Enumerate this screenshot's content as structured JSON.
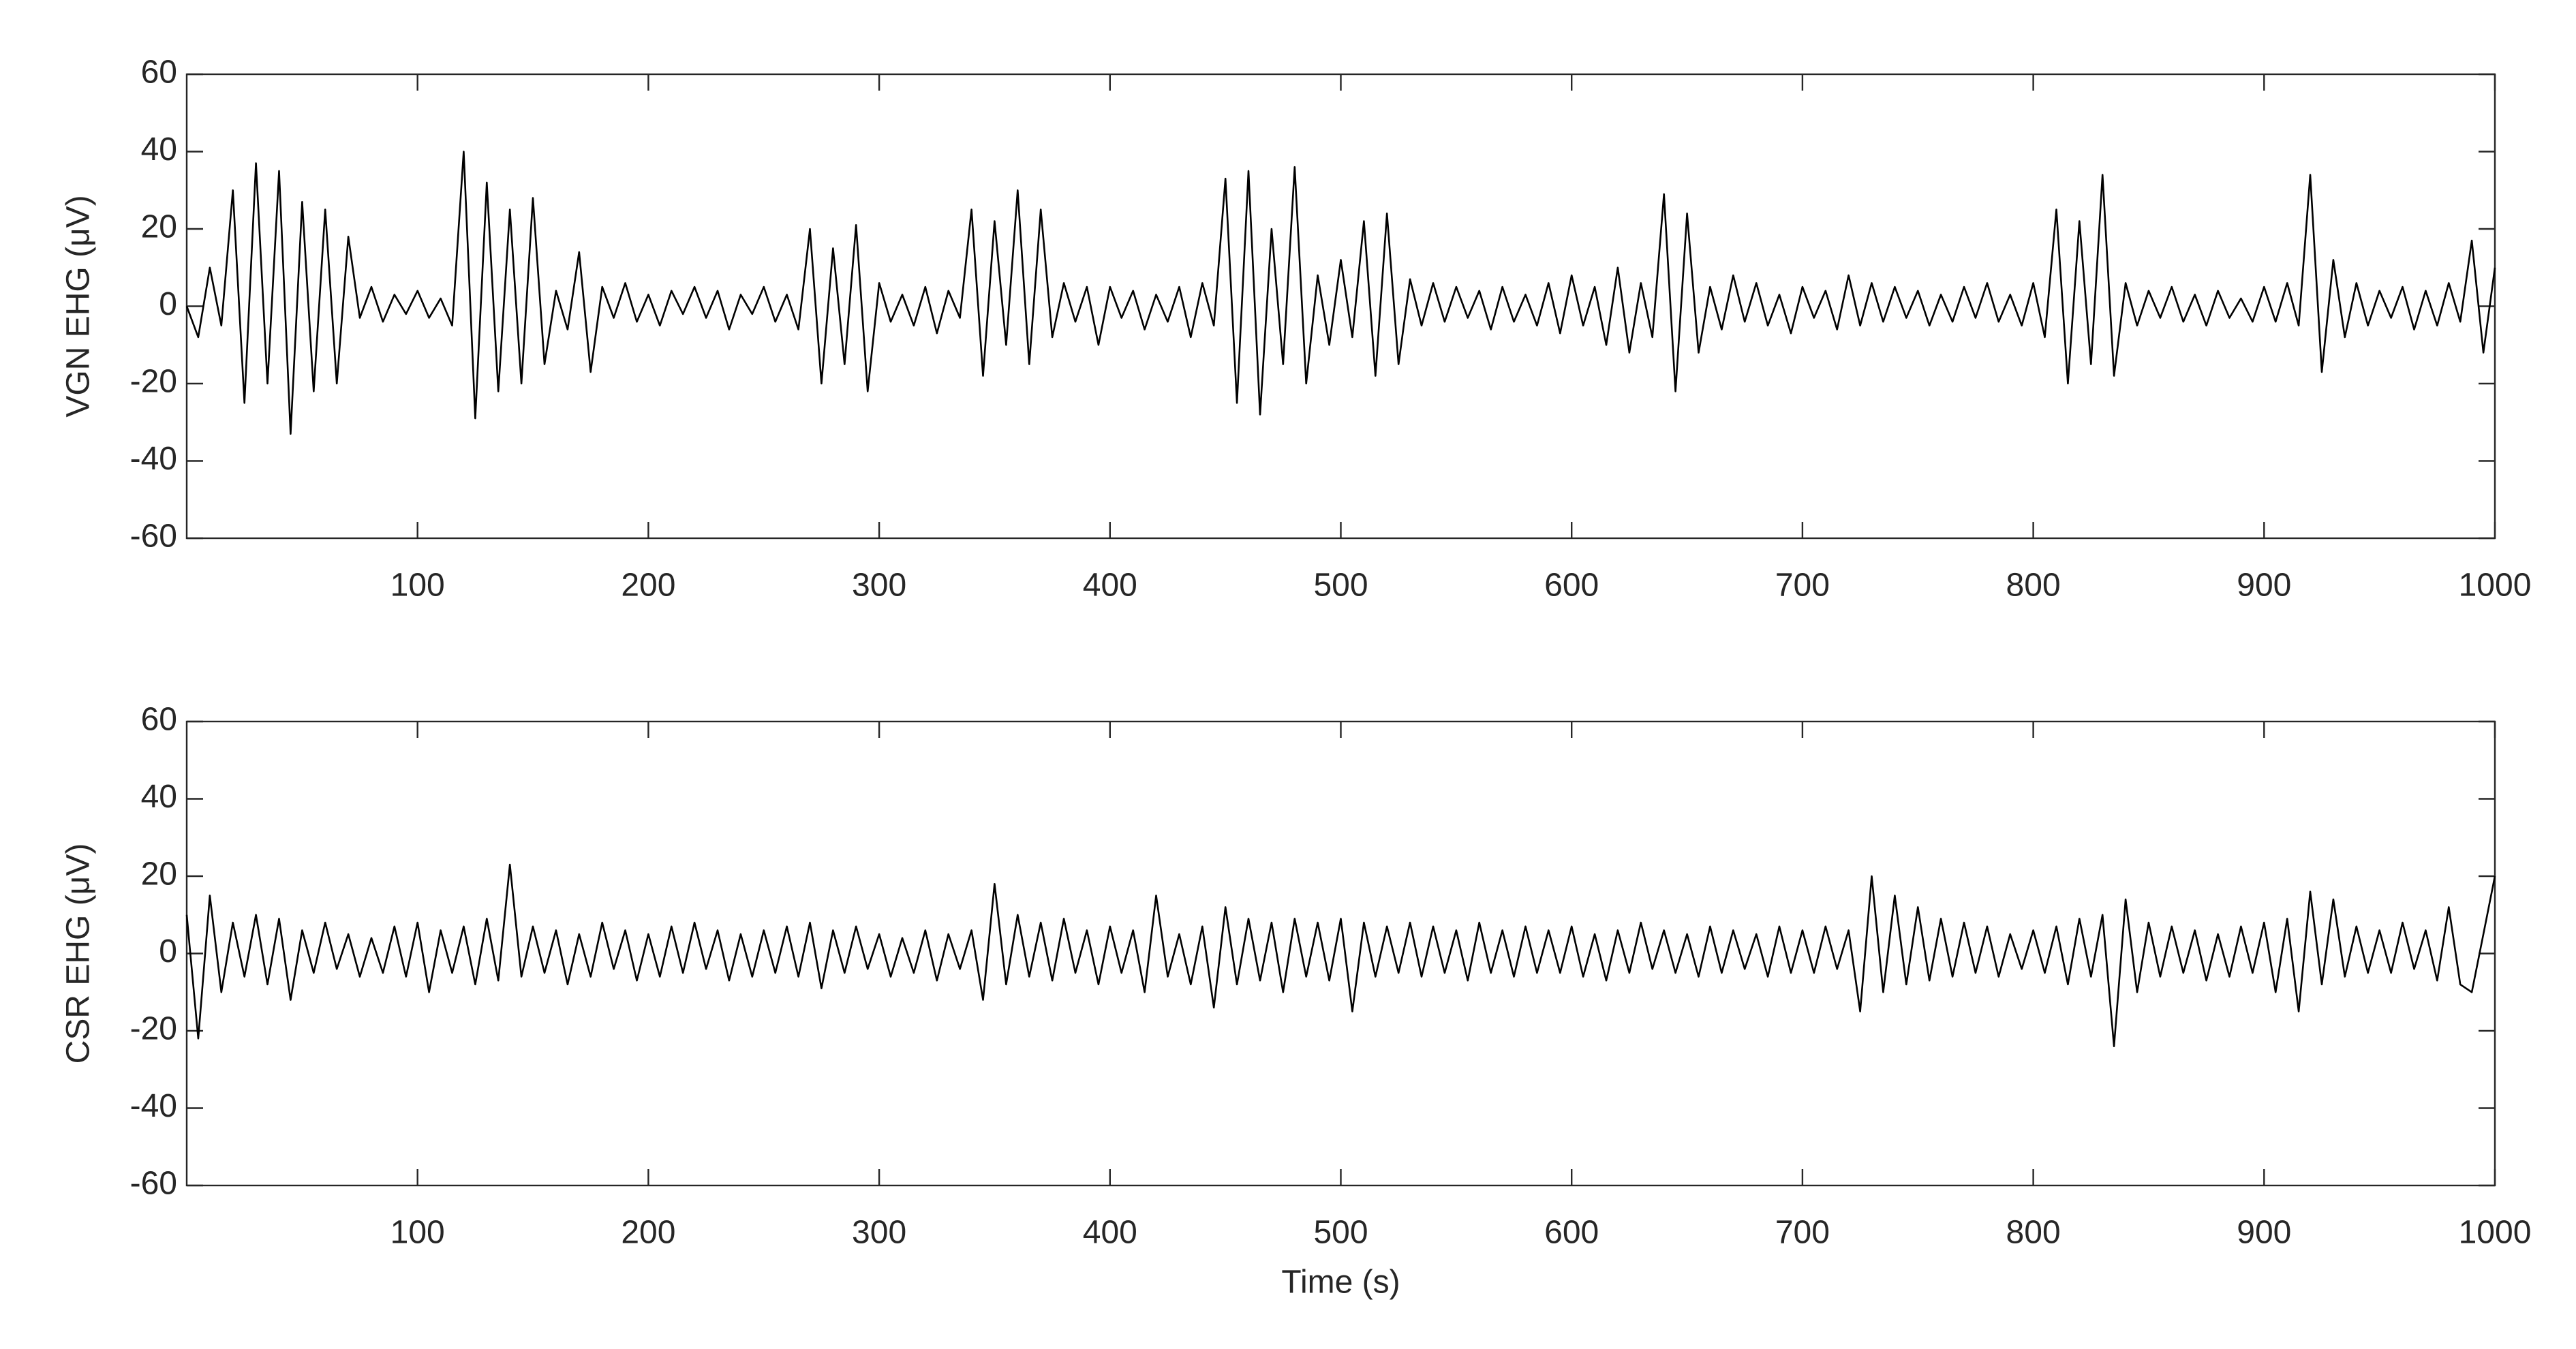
{
  "chart_data": [
    {
      "type": "line",
      "ylabel": "VGN EHG (μV)",
      "color": "#000000",
      "xlim": [
        0,
        1000
      ],
      "xticks": [
        100,
        200,
        300,
        400,
        500,
        600,
        700,
        800,
        900,
        1000
      ],
      "ylim": [
        -60,
        60
      ],
      "yticks": [
        -60,
        -40,
        -20,
        0,
        20,
        40,
        60
      ],
      "x": [
        0,
        5,
        10,
        15,
        20,
        25,
        30,
        35,
        40,
        45,
        50,
        55,
        60,
        65,
        70,
        75,
        80,
        85,
        90,
        95,
        100,
        105,
        110,
        115,
        120,
        125,
        130,
        135,
        140,
        145,
        150,
        155,
        160,
        165,
        170,
        175,
        180,
        185,
        190,
        195,
        200,
        205,
        210,
        215,
        220,
        225,
        230,
        235,
        240,
        245,
        250,
        255,
        260,
        265,
        270,
        275,
        280,
        285,
        290,
        295,
        300,
        305,
        310,
        315,
        320,
        325,
        330,
        335,
        340,
        345,
        350,
        355,
        360,
        365,
        370,
        375,
        380,
        385,
        390,
        395,
        400,
        405,
        410,
        415,
        420,
        425,
        430,
        435,
        440,
        445,
        450,
        455,
        460,
        465,
        470,
        475,
        480,
        485,
        490,
        495,
        500,
        505,
        510,
        515,
        520,
        525,
        530,
        535,
        540,
        545,
        550,
        555,
        560,
        565,
        570,
        575,
        580,
        585,
        590,
        595,
        600,
        605,
        610,
        615,
        620,
        625,
        630,
        635,
        640,
        645,
        650,
        655,
        660,
        665,
        670,
        675,
        680,
        685,
        690,
        695,
        700,
        705,
        710,
        715,
        720,
        725,
        730,
        735,
        740,
        745,
        750,
        755,
        760,
        765,
        770,
        775,
        780,
        785,
        790,
        795,
        800,
        805,
        810,
        815,
        820,
        825,
        830,
        835,
        840,
        845,
        850,
        855,
        860,
        865,
        870,
        875,
        880,
        885,
        890,
        895,
        900,
        905,
        910,
        915,
        920,
        925,
        930,
        935,
        940,
        945,
        950,
        955,
        960,
        965,
        970,
        975,
        980,
        985,
        990,
        995,
        1000
      ],
      "values": [
        0,
        -8,
        10,
        -5,
        30,
        -25,
        37,
        -20,
        35,
        -33,
        27,
        -22,
        25,
        -20,
        18,
        -3,
        5,
        -4,
        3,
        -2,
        4,
        -3,
        2,
        -5,
        40,
        -29,
        32,
        -22,
        25,
        -20,
        28,
        -15,
        4,
        -6,
        14,
        -17,
        5,
        -3,
        6,
        -4,
        3,
        -5,
        4,
        -2,
        5,
        -3,
        4,
        -6,
        3,
        -2,
        5,
        -4,
        3,
        -6,
        20,
        -20,
        15,
        -15,
        21,
        -22,
        6,
        -4,
        3,
        -5,
        5,
        -7,
        4,
        -3,
        25,
        -18,
        22,
        -10,
        30,
        -15,
        25,
        -8,
        6,
        -4,
        5,
        -10,
        5,
        -3,
        4,
        -6,
        3,
        -4,
        5,
        -8,
        6,
        -5,
        33,
        -25,
        35,
        -28,
        20,
        -15,
        36,
        -20,
        8,
        -10,
        12,
        -8,
        22,
        -18,
        24,
        -15,
        7,
        -5,
        6,
        -4,
        5,
        -3,
        4,
        -6,
        5,
        -4,
        3,
        -5,
        6,
        -7,
        8,
        -5,
        5,
        -10,
        10,
        -12,
        6,
        -8,
        29,
        -22,
        24,
        -12,
        5,
        -6,
        8,
        -4,
        6,
        -5,
        3,
        -7,
        5,
        -3,
        4,
        -6,
        8,
        -5,
        6,
        -4,
        5,
        -3,
        4,
        -5,
        3,
        -4,
        5,
        -3,
        6,
        -4,
        3,
        -5,
        6,
        -8,
        25,
        -20,
        22,
        -15,
        34,
        -18,
        6,
        -5,
        4,
        -3,
        5,
        -4,
        3,
        -5,
        4,
        -3,
        2,
        -4,
        5,
        -4,
        6,
        -5,
        34,
        -17,
        12,
        -8,
        6,
        -5,
        4,
        -3,
        5,
        -6,
        4,
        -5,
        6,
        -4,
        17,
        -12,
        10
      ]
    },
    {
      "type": "line",
      "ylabel": "CSR EHG (μV)",
      "xlabel": "Time (s)",
      "color": "#000000",
      "xlim": [
        0,
        1000
      ],
      "xticks": [
        100,
        200,
        300,
        400,
        500,
        600,
        700,
        800,
        900,
        1000
      ],
      "ylim": [
        -60,
        60
      ],
      "yticks": [
        -60,
        -40,
        -20,
        0,
        20,
        40,
        60
      ],
      "x": [
        0,
        5,
        10,
        15,
        20,
        25,
        30,
        35,
        40,
        45,
        50,
        55,
        60,
        65,
        70,
        75,
        80,
        85,
        90,
        95,
        100,
        105,
        110,
        115,
        120,
        125,
        130,
        135,
        140,
        145,
        150,
        155,
        160,
        165,
        170,
        175,
        180,
        185,
        190,
        195,
        200,
        205,
        210,
        215,
        220,
        225,
        230,
        235,
        240,
        245,
        250,
        255,
        260,
        265,
        270,
        275,
        280,
        285,
        290,
        295,
        300,
        305,
        310,
        315,
        320,
        325,
        330,
        335,
        340,
        345,
        350,
        355,
        360,
        365,
        370,
        375,
        380,
        385,
        390,
        395,
        400,
        405,
        410,
        415,
        420,
        425,
        430,
        435,
        440,
        445,
        450,
        455,
        460,
        465,
        470,
        475,
        480,
        485,
        490,
        495,
        500,
        505,
        510,
        515,
        520,
        525,
        530,
        535,
        540,
        545,
        550,
        555,
        560,
        565,
        570,
        575,
        580,
        585,
        590,
        595,
        600,
        605,
        610,
        615,
        620,
        625,
        630,
        635,
        640,
        645,
        650,
        655,
        660,
        665,
        670,
        675,
        680,
        685,
        690,
        695,
        700,
        705,
        710,
        715,
        720,
        725,
        730,
        735,
        740,
        745,
        750,
        755,
        760,
        765,
        770,
        775,
        780,
        785,
        790,
        795,
        800,
        805,
        810,
        815,
        820,
        825,
        830,
        835,
        840,
        845,
        850,
        855,
        860,
        865,
        870,
        875,
        880,
        885,
        890,
        895,
        900,
        905,
        910,
        915,
        920,
        925,
        930,
        935,
        940,
        945,
        950,
        955,
        960,
        965,
        970,
        975,
        980,
        985,
        990,
        995,
        1000
      ],
      "values": [
        10,
        -22,
        15,
        -10,
        8,
        -6,
        10,
        -8,
        9,
        -12,
        6,
        -5,
        8,
        -4,
        5,
        -6,
        4,
        -5,
        7,
        -6,
        8,
        -10,
        6,
        -5,
        7,
        -8,
        9,
        -7,
        23,
        -6,
        7,
        -5,
        6,
        -8,
        5,
        -6,
        8,
        -4,
        6,
        -7,
        5,
        -6,
        7,
        -5,
        8,
        -4,
        6,
        -7,
        5,
        -6,
        6,
        -5,
        7,
        -6,
        8,
        -9,
        6,
        -5,
        7,
        -4,
        5,
        -6,
        4,
        -5,
        6,
        -7,
        5,
        -4,
        6,
        -12,
        18,
        -8,
        10,
        -6,
        8,
        -7,
        9,
        -5,
        6,
        -8,
        7,
        -5,
        6,
        -10,
        15,
        -6,
        5,
        -8,
        7,
        -14,
        12,
        -8,
        9,
        -7,
        8,
        -10,
        9,
        -6,
        8,
        -7,
        9,
        -15,
        8,
        -6,
        7,
        -5,
        8,
        -6,
        7,
        -5,
        6,
        -7,
        8,
        -5,
        6,
        -6,
        7,
        -5,
        6,
        -5,
        7,
        -6,
        5,
        -7,
        6,
        -5,
        8,
        -4,
        6,
        -5,
        5,
        -6,
        7,
        -5,
        6,
        -4,
        5,
        -6,
        7,
        -5,
        6,
        -5,
        7,
        -4,
        6,
        -15,
        20,
        -10,
        15,
        -8,
        12,
        -7,
        9,
        -6,
        8,
        -5,
        7,
        -6,
        5,
        -4,
        6,
        -5,
        7,
        -8,
        9,
        -6,
        10,
        -24,
        14,
        -10,
        8,
        -6,
        7,
        -5,
        6,
        -7,
        5,
        -6,
        7,
        -5,
        8,
        -10,
        9,
        -15,
        16,
        -8,
        14,
        -6,
        7,
        -5,
        6,
        -5,
        8,
        -4,
        6,
        -7,
        12,
        -8,
        -10,
        5,
        20
      ]
    }
  ]
}
